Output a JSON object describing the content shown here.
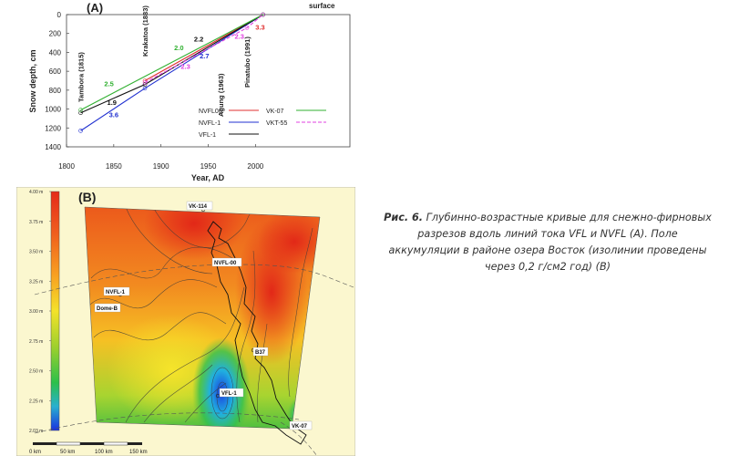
{
  "chart_data": {
    "type": "line",
    "panel_label": "(A)",
    "xlabel": "Year, AD",
    "ylabel": "Snow depth, cm",
    "xlim": [
      1800,
      2100
    ],
    "ylim": [
      1400,
      0
    ],
    "y_inverted": true,
    "x_ticks": [
      "1800",
      "1850",
      "1900",
      "1950",
      "2000"
    ],
    "y_ticks": [
      "0",
      "200",
      "400",
      "600",
      "800",
      "1000",
      "1200",
      "1400"
    ],
    "surface_label": "surface",
    "events": [
      {
        "label": "Tambora (1815)",
        "year": 1815
      },
      {
        "label": "Krakatoa (1883)",
        "year": 1883
      },
      {
        "label": "Agung (1963)",
        "year": 1963
      },
      {
        "label": "Pinatubo (1991)",
        "year": 1991
      }
    ],
    "series": [
      {
        "name": "NVFL00",
        "color": "#e03030",
        "dash": false,
        "points": [
          [
            1883,
            700
          ],
          [
            2008,
            0
          ]
        ]
      },
      {
        "name": "NVFL-1",
        "color": "#2030d0",
        "dash": false,
        "points": [
          [
            1815,
            1230
          ],
          [
            1883,
            780
          ],
          [
            2008,
            0
          ]
        ]
      },
      {
        "name": "VFL-1",
        "color": "#111111",
        "dash": false,
        "points": [
          [
            1815,
            1040
          ],
          [
            1883,
            740
          ],
          [
            2008,
            0
          ]
        ]
      },
      {
        "name": "VK-07",
        "color": "#30b030",
        "dash": false,
        "points": [
          [
            1815,
            1010
          ],
          [
            2008,
            0
          ]
        ]
      },
      {
        "name": "VKT-55",
        "color": "#e040e0",
        "dash": true,
        "points": [
          [
            1883,
            720
          ],
          [
            1991,
            140
          ],
          [
            2008,
            0
          ]
        ]
      }
    ],
    "annotations": [
      {
        "text": "2.5",
        "x": 1845,
        "y": 760,
        "color": "#30b030"
      },
      {
        "text": "1.9",
        "x": 1848,
        "y": 955,
        "color": "#111111"
      },
      {
        "text": "3.6",
        "x": 1850,
        "y": 1085,
        "color": "#2030d0"
      },
      {
        "text": "2.0",
        "x": 1919,
        "y": 375,
        "color": "#30b030"
      },
      {
        "text": "2.2",
        "x": 1940,
        "y": 285,
        "color": "#111111"
      },
      {
        "text": "2.7",
        "x": 1946,
        "y": 465,
        "color": "#2030d0"
      },
      {
        "text": "2.3",
        "x": 1926,
        "y": 575,
        "color": "#e040e0"
      },
      {
        "text": "2.3",
        "x": 1983,
        "y": 255,
        "color": "#e040e0"
      },
      {
        "text": "3.3",
        "x": 2005,
        "y": 160,
        "color": "#e03030"
      }
    ],
    "legend": [
      {
        "name": "NVFL00",
        "color": "#e03030",
        "dash": false
      },
      {
        "name": "VK-07",
        "color": "#30b030",
        "dash": false
      },
      {
        "name": "NVFL-1",
        "color": "#2030d0",
        "dash": false
      },
      {
        "name": "VKT-55",
        "color": "#e040e0",
        "dash": true
      },
      {
        "name": "VFL-1",
        "color": "#111111",
        "dash": false
      }
    ]
  },
  "map": {
    "panel_label": "(B)",
    "colorbar_ticks": [
      "4.00 m",
      "3.75 m",
      "3.50 m",
      "3.25 m",
      "3.00 m",
      "2.75 m",
      "2.50 m",
      "2.25 m",
      "2.03 m"
    ],
    "labels": [
      "VK-114",
      "NVFL-00",
      "NVFL-1",
      "Dome-B",
      "B37",
      "VFL-1",
      "VK-07"
    ],
    "scale_labels": [
      "0 km",
      "50 km",
      "100 km",
      "150 km"
    ]
  },
  "caption": {
    "label": "Рис. 6.",
    "text": "Глубинно-возрастные кривые для снежно-фирновых разрезов вдоль линий тока VFL и NVFL (А). Поле аккумуляции в районе озера Восток (изолинии проведены через 0,2 г/см2 год) (В)"
  }
}
